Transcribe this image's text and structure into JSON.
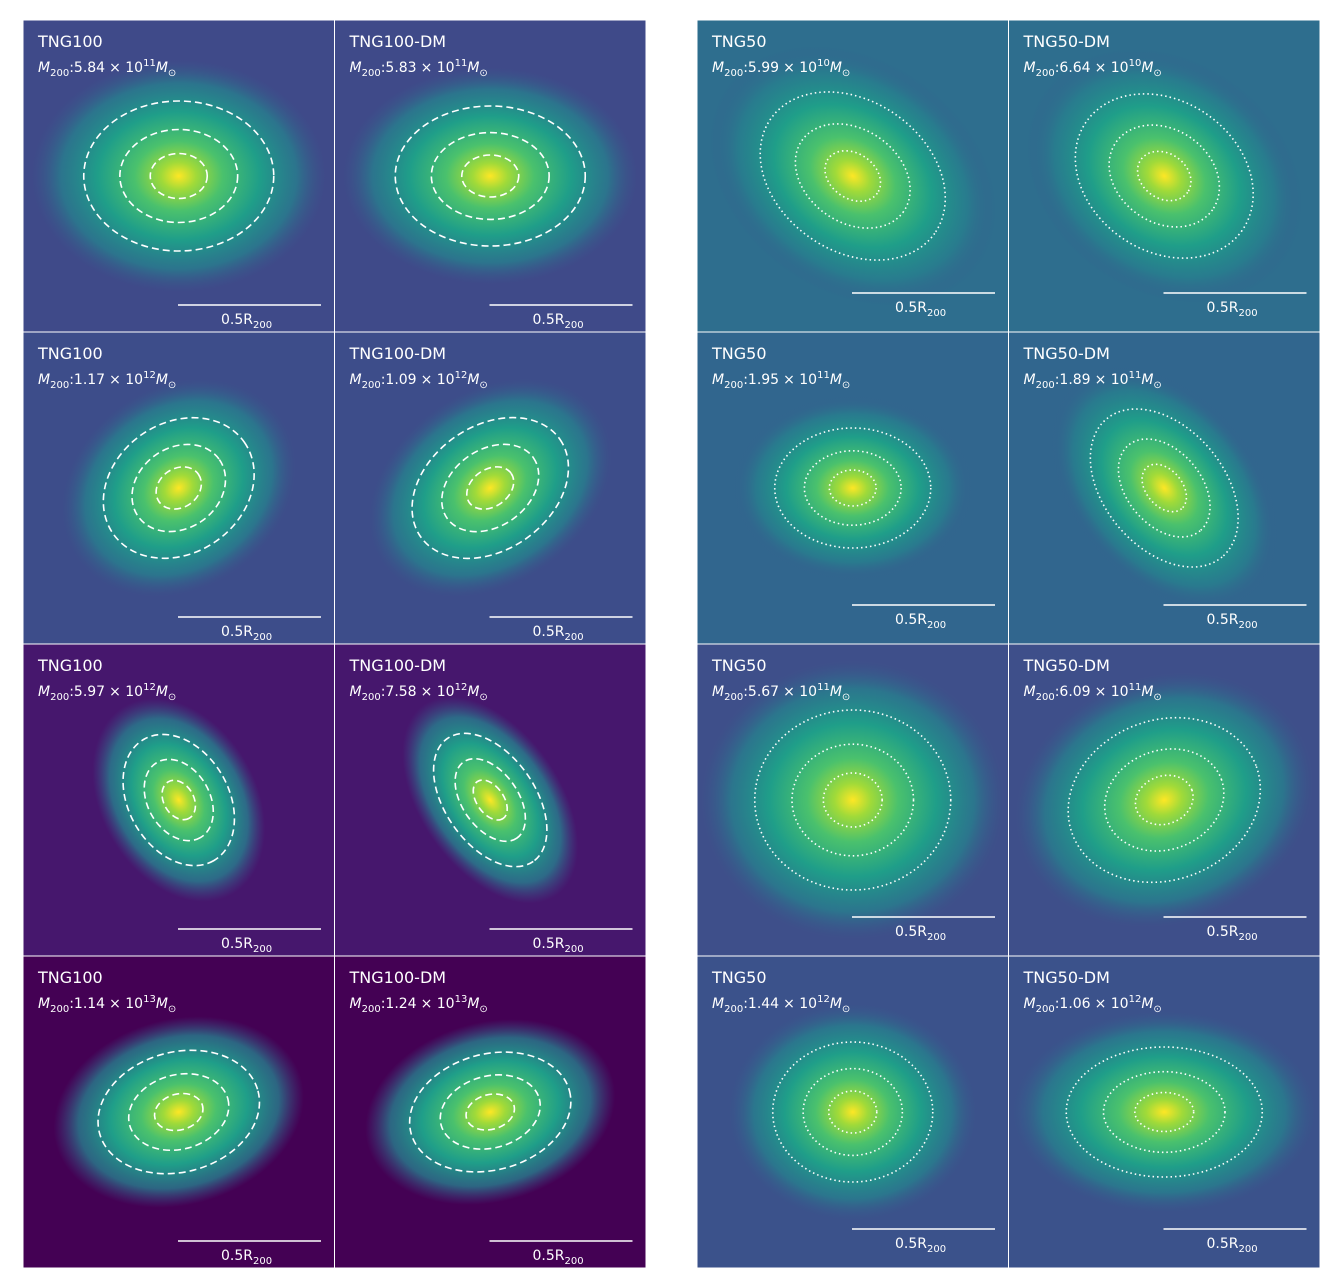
{
  "labels": {
    "mass_symbol": "M",
    "mass_subscript": "200",
    "separator": ":",
    "times": "× 10",
    "solar_symbol": "M",
    "solar_subscript": "⊙",
    "scale_bar": "0.5R",
    "scale_subscript": "200"
  },
  "groups": [
    {
      "panels": [
        {
          "title": "TNG100",
          "mass_mantissa": "5.84",
          "mass_exponent": "11"
        },
        {
          "title": "TNG100-DM",
          "mass_mantissa": "5.83",
          "mass_exponent": "11"
        },
        {
          "title": "TNG100",
          "mass_mantissa": "1.17",
          "mass_exponent": "12"
        },
        {
          "title": "TNG100-DM",
          "mass_mantissa": "1.09",
          "mass_exponent": "12"
        },
        {
          "title": "TNG100",
          "mass_mantissa": "5.97",
          "mass_exponent": "12"
        },
        {
          "title": "TNG100-DM",
          "mass_mantissa": "7.58",
          "mass_exponent": "12"
        },
        {
          "title": "TNG100",
          "mass_mantissa": "1.14",
          "mass_exponent": "13"
        },
        {
          "title": "TNG100-DM",
          "mass_mantissa": "1.24",
          "mass_exponent": "13"
        }
      ]
    },
    {
      "panels": [
        {
          "title": "TNG50",
          "mass_mantissa": "5.99",
          "mass_exponent": "10"
        },
        {
          "title": "TNG50-DM",
          "mass_mantissa": "6.64",
          "mass_exponent": "10"
        },
        {
          "title": "TNG50",
          "mass_mantissa": "1.95",
          "mass_exponent": "11"
        },
        {
          "title": "TNG50-DM",
          "mass_mantissa": "1.89",
          "mass_exponent": "11"
        },
        {
          "title": "TNG50",
          "mass_mantissa": "5.67",
          "mass_exponent": "11"
        },
        {
          "title": "TNG50-DM",
          "mass_mantissa": "6.09",
          "mass_exponent": "11"
        },
        {
          "title": "TNG50",
          "mass_mantissa": "1.44",
          "mass_exponent": "12"
        },
        {
          "title": "TNG50-DM",
          "mass_mantissa": "1.06",
          "mass_exponent": "12"
        }
      ]
    }
  ]
}
